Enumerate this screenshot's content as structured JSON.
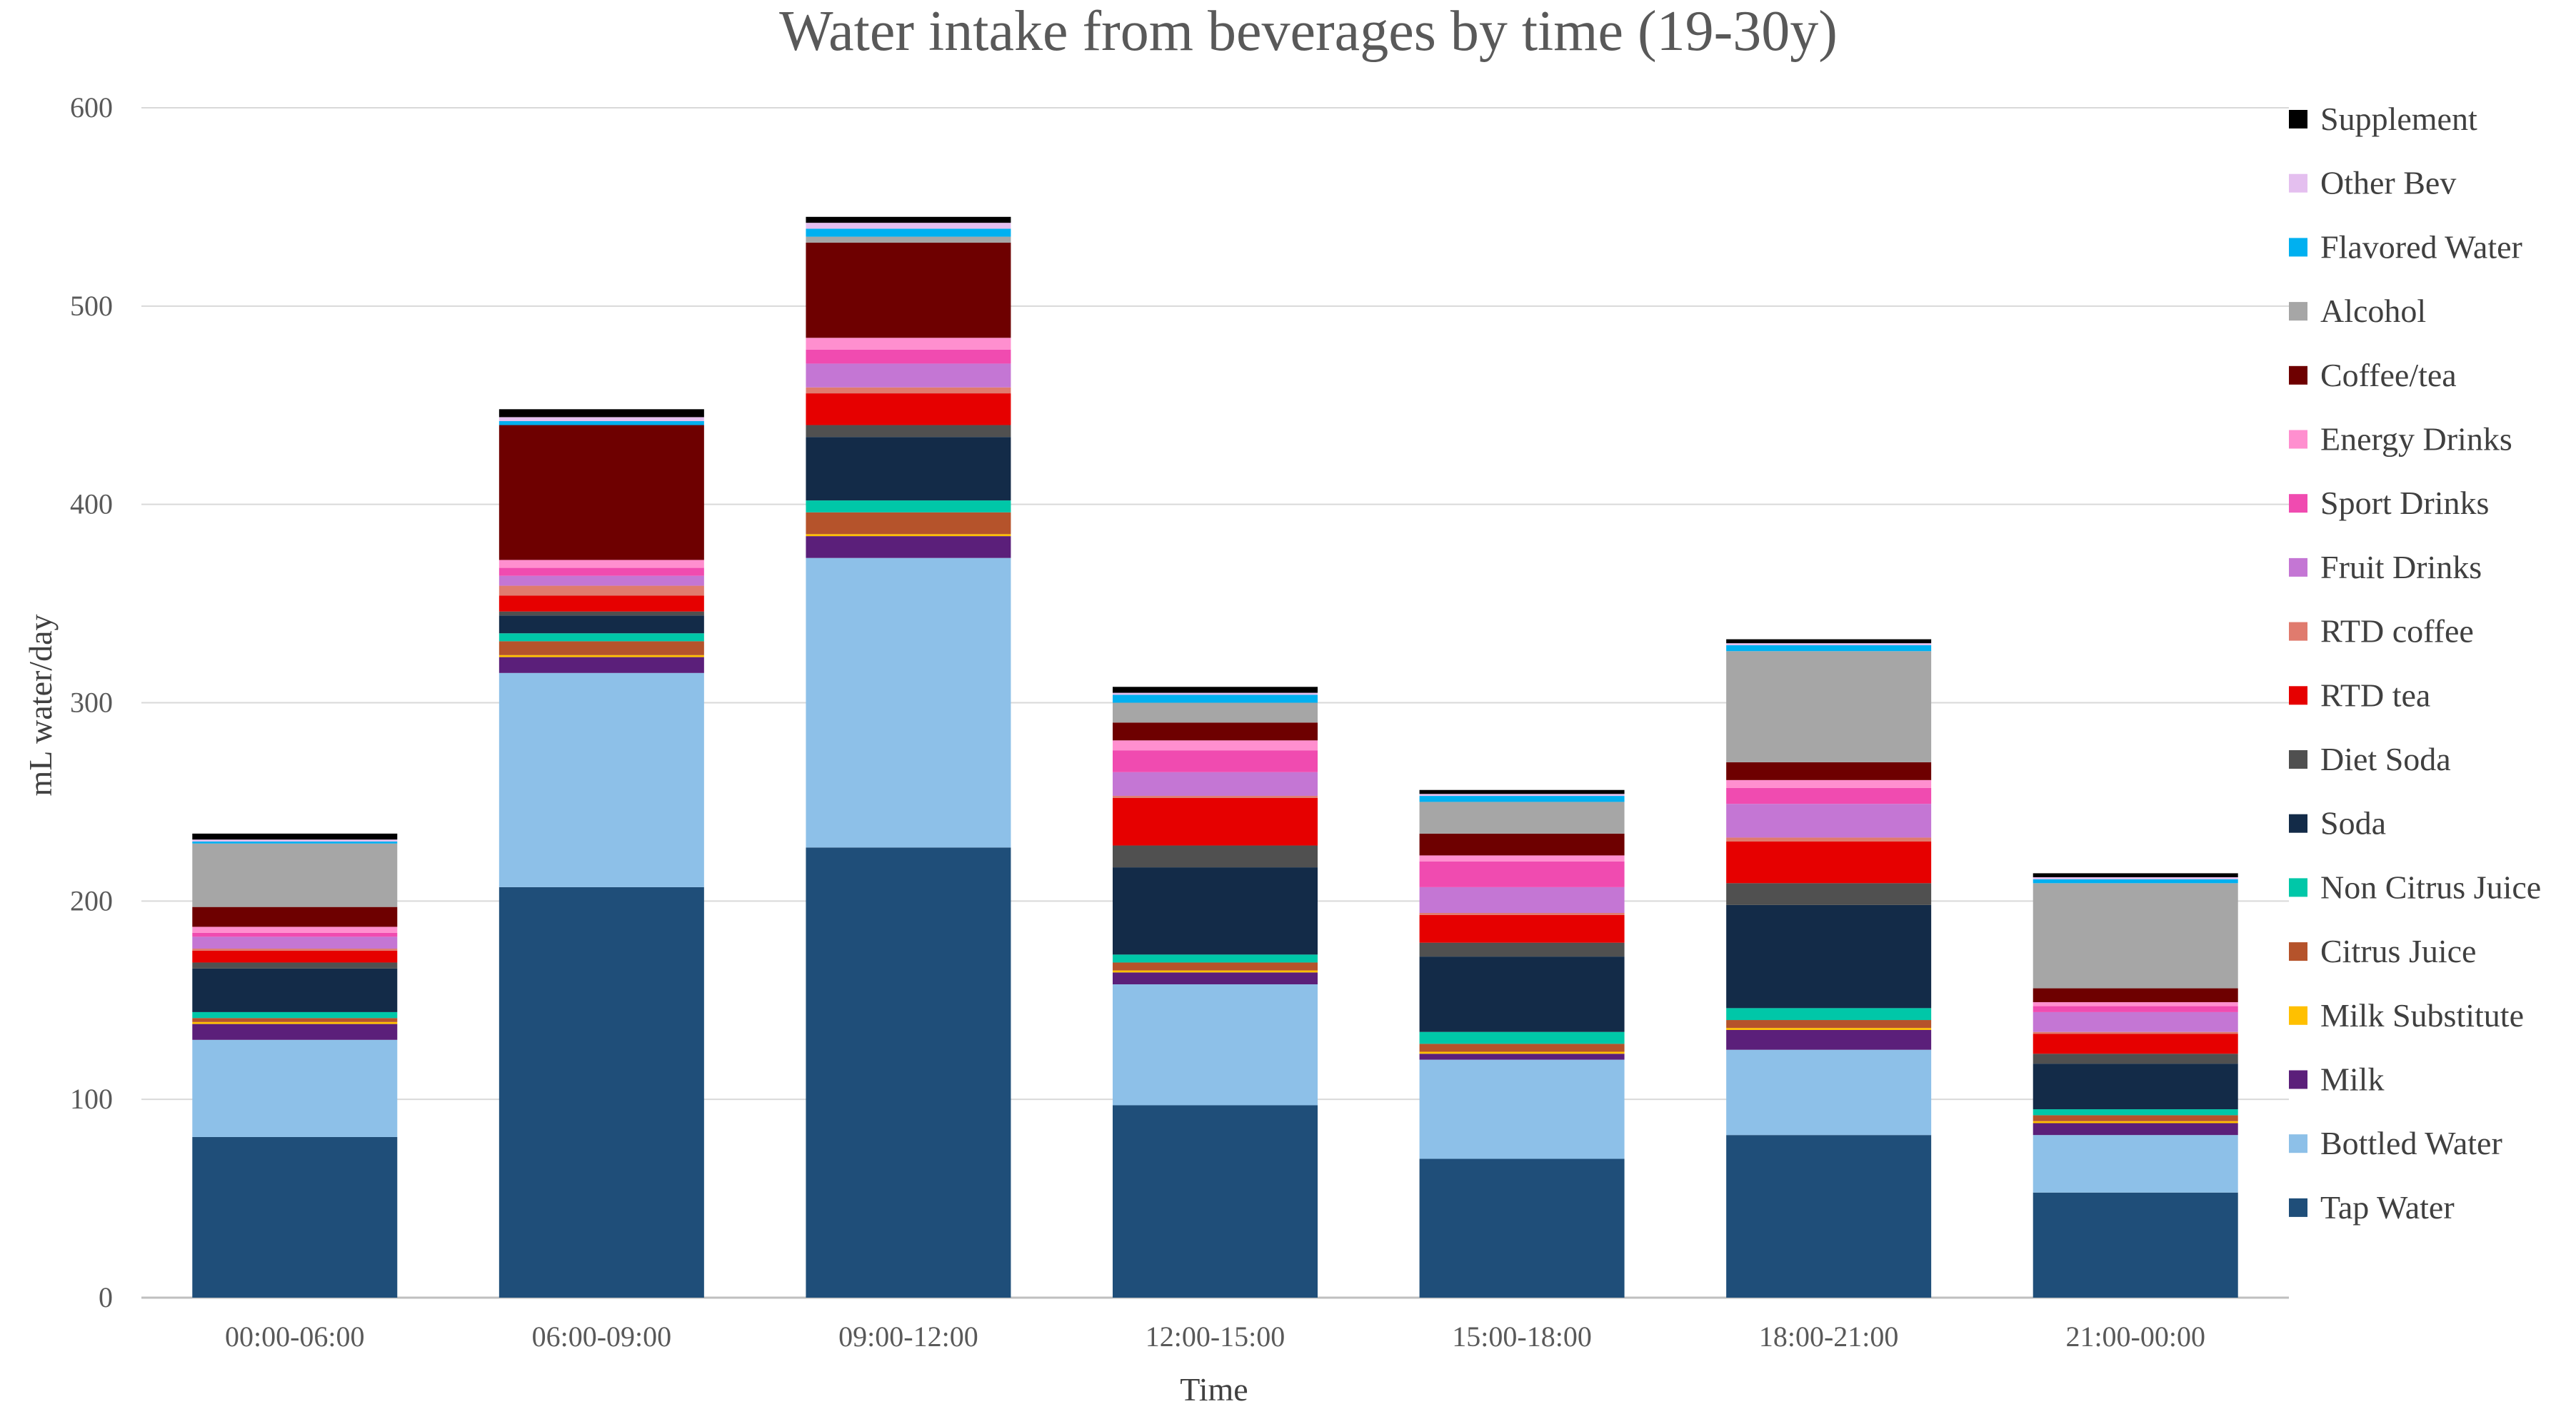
{
  "chart_data": {
    "type": "bar",
    "stacked": true,
    "title": "Water intake from beverages by time (19-30y)",
    "xlabel": "Time",
    "ylabel": "mL water/day",
    "ylim": [
      0,
      600
    ],
    "yticks": [
      0,
      100,
      200,
      300,
      400,
      500,
      600
    ],
    "grid": true,
    "legend_position": "right",
    "categories": [
      "00:00-06:00",
      "06:00-09:00",
      "09:00-12:00",
      "12:00-15:00",
      "15:00-18:00",
      "18:00-21:00",
      "21:00-00:00"
    ],
    "series": [
      {
        "name": "Tap Water",
        "color": "#1F4E79",
        "values": [
          81,
          207,
          227,
          97,
          70,
          82,
          53
        ]
      },
      {
        "name": "Bottled Water",
        "color": "#8DC0E8",
        "values": [
          49,
          108,
          146,
          61,
          50,
          43,
          29
        ]
      },
      {
        "name": "Milk",
        "color": "#5B1F7A",
        "values": [
          8,
          8,
          11,
          6,
          3,
          10,
          6
        ]
      },
      {
        "name": "Milk Substitute",
        "color": "#FFC000",
        "values": [
          1,
          1,
          1,
          1,
          1,
          1,
          1
        ]
      },
      {
        "name": "Citrus Juice",
        "color": "#B5532B",
        "values": [
          2,
          7,
          11,
          4,
          4,
          4,
          3
        ]
      },
      {
        "name": "Non Citrus Juice",
        "color": "#00C7A8",
        "values": [
          3,
          4,
          6,
          4,
          6,
          6,
          3
        ]
      },
      {
        "name": "Soda",
        "color": "#132B48",
        "values": [
          22,
          9,
          32,
          44,
          38,
          52,
          23
        ]
      },
      {
        "name": "Diet Soda",
        "color": "#505050",
        "values": [
          3,
          2,
          6,
          11,
          7,
          11,
          5
        ]
      },
      {
        "name": "RTD tea",
        "color": "#E60000",
        "values": [
          6,
          8,
          16,
          24,
          14,
          21,
          10
        ]
      },
      {
        "name": "RTD coffee",
        "color": "#E07B6E",
        "values": [
          1,
          5,
          3,
          1,
          1,
          2,
          1
        ]
      },
      {
        "name": "Fruit Drinks",
        "color": "#C476D4",
        "values": [
          6,
          5,
          12,
          12,
          13,
          17,
          10
        ]
      },
      {
        "name": "Sport Drinks",
        "color": "#F04BB0",
        "values": [
          2,
          4,
          7,
          11,
          13,
          8,
          3
        ]
      },
      {
        "name": "Energy Drinks",
        "color": "#FF8FCF",
        "values": [
          3,
          4,
          6,
          5,
          3,
          4,
          2
        ]
      },
      {
        "name": "Coffee/tea",
        "color": "#6E0000",
        "values": [
          10,
          68,
          48,
          9,
          11,
          9,
          7
        ]
      },
      {
        "name": "Alcohol",
        "color": "#A6A6A6",
        "values": [
          32,
          0,
          3,
          10,
          16,
          56,
          53
        ]
      },
      {
        "name": "Flavored Water",
        "color": "#00B0F0",
        "values": [
          1,
          2,
          4,
          4,
          3,
          3,
          2
        ]
      },
      {
        "name": "Other Bev",
        "color": "#E4BFEF",
        "values": [
          1,
          2,
          3,
          1,
          1,
          1,
          1
        ]
      },
      {
        "name": "Supplement",
        "color": "#000000",
        "values": [
          3,
          4,
          3,
          3,
          2,
          2,
          2
        ]
      }
    ]
  }
}
